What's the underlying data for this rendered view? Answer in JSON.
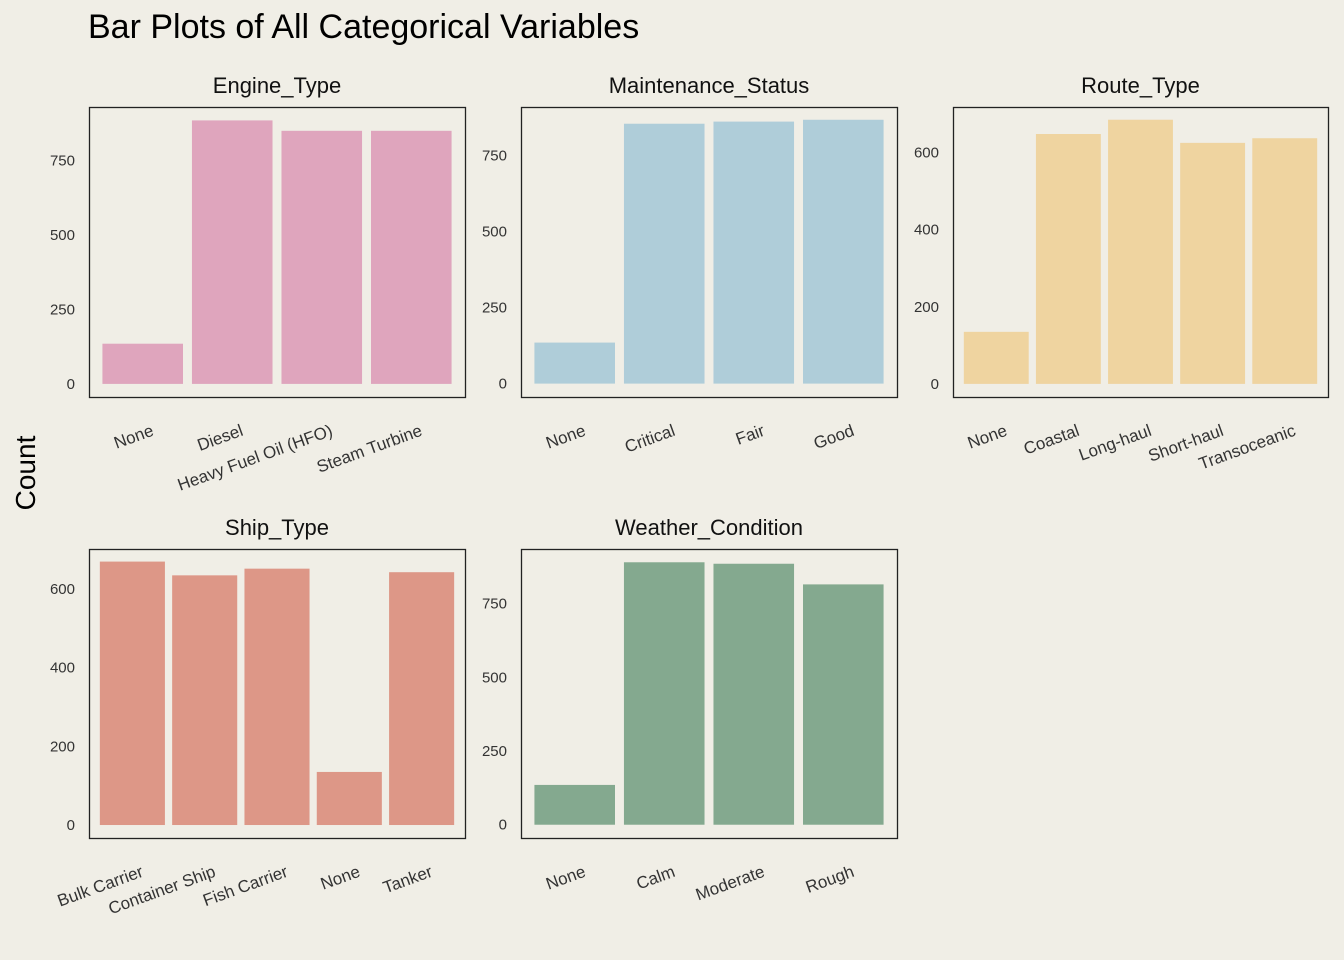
{
  "title": "Bar Plots of All Categorical Variables",
  "ylabel": "Count",
  "colors": {
    "background": "#f0eee6",
    "engine": "#dfa5bd",
    "maintenance": "#afcdd9",
    "route": "#efd4a0",
    "ship": "#dd9787",
    "weather": "#84a98f"
  },
  "chart_data": [
    {
      "type": "bar",
      "title": "Engine_Type",
      "categories": [
        "None",
        "Diesel",
        "Heavy Fuel Oil (HFO)",
        "Steam Turbine"
      ],
      "values": [
        135,
        885,
        850,
        850
      ],
      "yticks": [
        0,
        250,
        500,
        750
      ],
      "ylim": [
        -44,
        930
      ],
      "color": "#dfa5bd"
    },
    {
      "type": "bar",
      "title": "Maintenance_Status",
      "categories": [
        "None",
        "Critical",
        "Fair",
        "Good"
      ],
      "values": [
        135,
        855,
        862,
        868
      ],
      "yticks": [
        0,
        250,
        500,
        750
      ],
      "ylim": [
        -44,
        910
      ],
      "color": "#afcdd9"
    },
    {
      "type": "bar",
      "title": "Route_Type",
      "categories": [
        "None",
        "Coastal",
        "Long-haul",
        "Short-haul",
        "Transoceanic"
      ],
      "values": [
        135,
        648,
        685,
        625,
        637
      ],
      "yticks": [
        0,
        200,
        400,
        600
      ],
      "ylim": [
        -34,
        718
      ],
      "color": "#efd4a0"
    },
    {
      "type": "bar",
      "title": "Ship_Type",
      "categories": [
        "Bulk Carrier",
        "Container Ship",
        "Fish Carrier",
        "None",
        "Tanker"
      ],
      "values": [
        670,
        635,
        652,
        135,
        643
      ],
      "yticks": [
        0,
        200,
        400,
        600
      ],
      "ylim": [
        -33,
        702
      ],
      "color": "#dd9787"
    },
    {
      "type": "bar",
      "title": "Weather_Condition",
      "categories": [
        "None",
        "Calm",
        "Moderate",
        "Rough"
      ],
      "values": [
        135,
        890,
        885,
        815
      ],
      "yticks": [
        0,
        250,
        500,
        750
      ],
      "ylim": [
        -45,
        935
      ],
      "color": "#84a98f"
    }
  ]
}
